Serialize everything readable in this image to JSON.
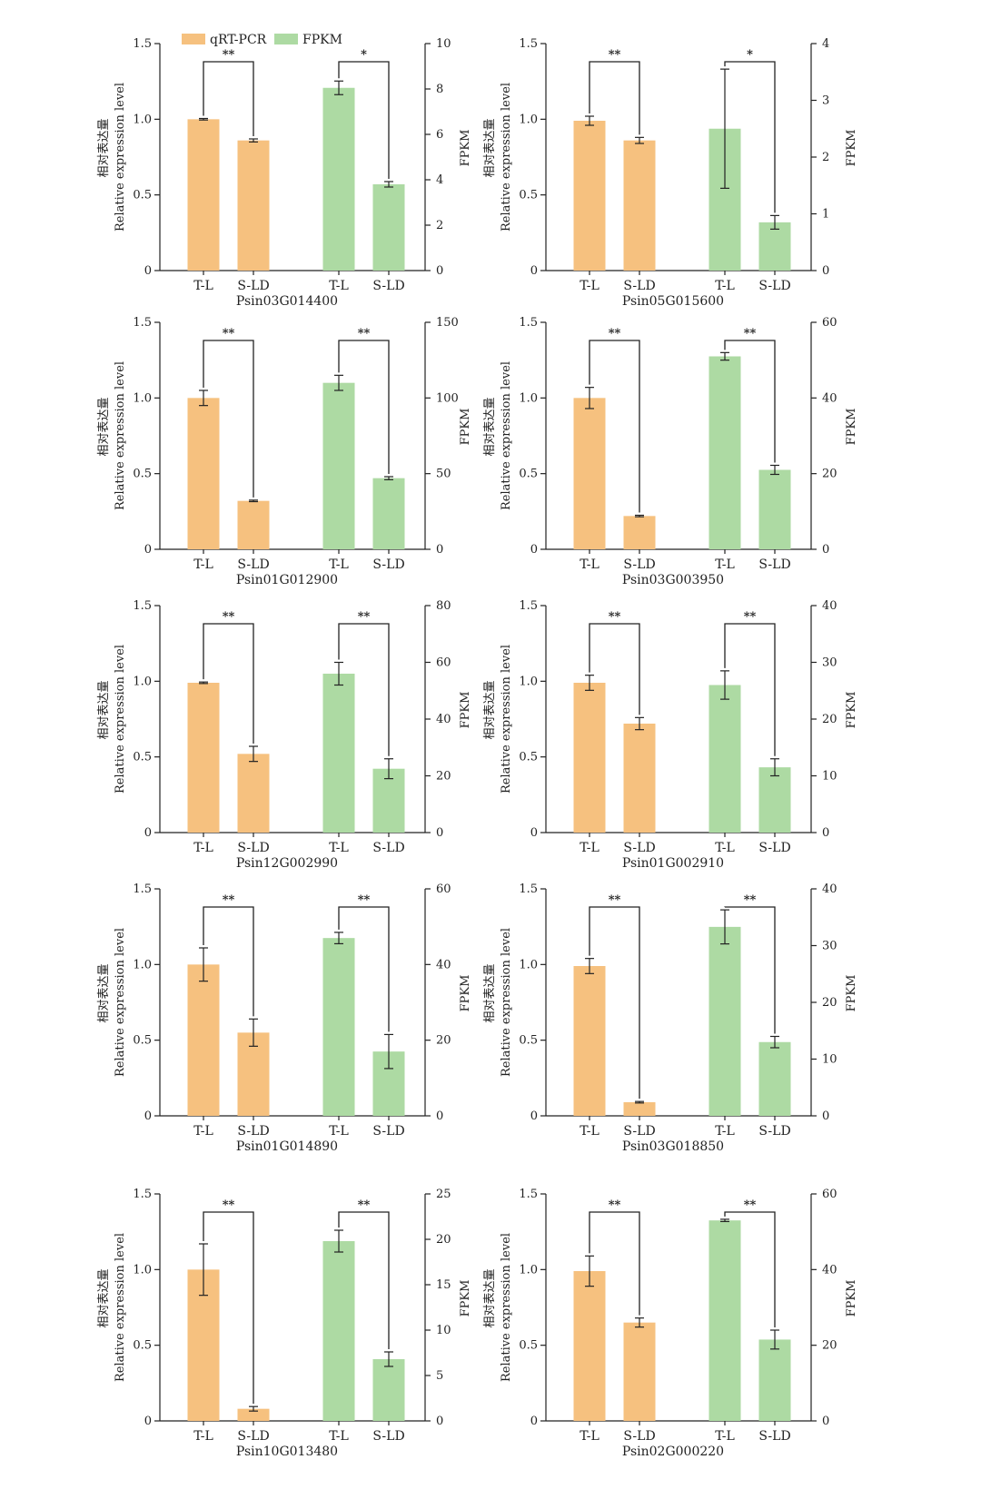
{
  "colors": {
    "qrt": "#F6C17F",
    "fpkm": "#ADDAA3",
    "axis": "#222222"
  },
  "legend": [
    {
      "key": "qrt",
      "label": "qRT-PCR"
    },
    {
      "key": "fpkm",
      "label": "FPKM"
    }
  ],
  "left_axis_label": "Relative expression level",
  "left_axis_label_cn": "相对表达量",
  "right_axis_label": "FPKM",
  "chart_data": [
    {
      "type": "bar",
      "gene": "Psin03G014400",
      "categories": [
        "T-L",
        "S-LD",
        "T-L",
        "S-LD"
      ],
      "qrt": {
        "values": [
          1.0,
          0.86
        ],
        "err": [
          0.005,
          0.01
        ],
        "ylim": [
          0,
          1.5
        ],
        "ticks": [
          "0",
          "0.5",
          "1.0",
          "1.5"
        ]
      },
      "fpkm": {
        "values": [
          8.05,
          3.8
        ],
        "err": [
          0.3,
          0.12
        ],
        "ylim": [
          0,
          10
        ],
        "ticks": [
          "0",
          "2",
          "4",
          "6",
          "8",
          "10"
        ]
      },
      "sig": [
        "**",
        "*"
      ]
    },
    {
      "type": "bar",
      "gene": "Psin05G015600",
      "categories": [
        "T-L",
        "S-LD",
        "T-L",
        "S-LD"
      ],
      "qrt": {
        "values": [
          0.99,
          0.86
        ],
        "err": [
          0.03,
          0.02
        ],
        "ylim": [
          0,
          1.5
        ],
        "ticks": [
          "0",
          "0.5",
          "1.0",
          "1.5"
        ]
      },
      "fpkm": {
        "values": [
          2.5,
          0.85
        ],
        "err": [
          1.05,
          0.12
        ],
        "ylim": [
          0,
          4
        ],
        "ticks": [
          "0",
          "1",
          "2",
          "3",
          "4"
        ]
      },
      "sig": [
        "**",
        "*"
      ]
    },
    {
      "type": "bar",
      "gene": "Psin01G012900",
      "categories": [
        "T-L",
        "S-LD",
        "T-L",
        "S-LD"
      ],
      "qrt": {
        "values": [
          1.0,
          0.32
        ],
        "err": [
          0.05,
          0.005
        ],
        "ylim": [
          0,
          1.5
        ],
        "ticks": [
          "0",
          "0.5",
          "1.0",
          "1.5"
        ]
      },
      "fpkm": {
        "values": [
          110,
          47
        ],
        "err": [
          5,
          1
        ],
        "ylim": [
          0,
          150
        ],
        "ticks": [
          "0",
          "50",
          "100",
          "150"
        ]
      },
      "sig": [
        "**",
        "**"
      ]
    },
    {
      "type": "bar",
      "gene": "Psin03G003950",
      "categories": [
        "T-L",
        "S-LD",
        "T-L",
        "S-LD"
      ],
      "qrt": {
        "values": [
          1.0,
          0.22
        ],
        "err": [
          0.07,
          0.005
        ],
        "ylim": [
          0,
          1.5
        ],
        "ticks": [
          "0",
          "0.5",
          "1.0",
          "1.5"
        ]
      },
      "fpkm": {
        "values": [
          51,
          21
        ],
        "err": [
          1,
          1.2
        ],
        "ylim": [
          0,
          60
        ],
        "ticks": [
          "0",
          "20",
          "40",
          "60"
        ]
      },
      "sig": [
        "**",
        "**"
      ]
    },
    {
      "type": "bar",
      "gene": "Psin12G002990",
      "categories": [
        "T-L",
        "S-LD",
        "T-L",
        "S-LD"
      ],
      "qrt": {
        "values": [
          0.99,
          0.52
        ],
        "err": [
          0.005,
          0.05
        ],
        "ylim": [
          0,
          1.5
        ],
        "ticks": [
          "0",
          "0.5",
          "1.0",
          "1.5"
        ]
      },
      "fpkm": {
        "values": [
          56,
          22.5
        ],
        "err": [
          4,
          3.5
        ],
        "ylim": [
          0,
          80
        ],
        "ticks": [
          "0",
          "20",
          "40",
          "60",
          "80"
        ]
      },
      "sig": [
        "**",
        "**"
      ]
    },
    {
      "type": "bar",
      "gene": "Psin01G002910",
      "categories": [
        "T-L",
        "S-LD",
        "T-L",
        "S-LD"
      ],
      "qrt": {
        "values": [
          0.99,
          0.72
        ],
        "err": [
          0.05,
          0.04
        ],
        "ylim": [
          0,
          1.5
        ],
        "ticks": [
          "0",
          "0.5",
          "1.0",
          "1.5"
        ]
      },
      "fpkm": {
        "values": [
          26,
          11.5
        ],
        "err": [
          2.5,
          1.5
        ],
        "ylim": [
          0,
          40
        ],
        "ticks": [
          "0",
          "10",
          "20",
          "30",
          "40"
        ]
      },
      "sig": [
        "**",
        "**"
      ]
    },
    {
      "type": "bar",
      "gene": "Psin01G014890",
      "categories": [
        "T-L",
        "S-LD",
        "T-L",
        "S-LD"
      ],
      "qrt": {
        "values": [
          1.0,
          0.55
        ],
        "err": [
          0.11,
          0.09
        ],
        "ylim": [
          0,
          1.5
        ],
        "ticks": [
          "0",
          "0.5",
          "1.0",
          "1.5"
        ]
      },
      "fpkm": {
        "values": [
          47,
          17
        ],
        "err": [
          1.5,
          4.5
        ],
        "ylim": [
          0,
          60
        ],
        "ticks": [
          "0",
          "20",
          "40",
          "60"
        ]
      },
      "sig": [
        "**",
        "**"
      ]
    },
    {
      "type": "bar",
      "gene": "Psin03G018850",
      "categories": [
        "T-L",
        "S-LD",
        "T-L",
        "S-LD"
      ],
      "qrt": {
        "values": [
          0.99,
          0.09
        ],
        "err": [
          0.05,
          0.005
        ],
        "ylim": [
          0,
          1.5
        ],
        "ticks": [
          "0",
          "0.5",
          "1.0",
          "1.5"
        ]
      },
      "fpkm": {
        "values": [
          33.3,
          13
        ],
        "err": [
          3,
          1
        ],
        "ylim": [
          0,
          40
        ],
        "ticks": [
          "0",
          "10",
          "20",
          "30",
          "40"
        ]
      },
      "sig": [
        "**",
        "**"
      ]
    },
    {
      "type": "bar",
      "gene": "Psin10G013480",
      "categories": [
        "T-L",
        "S-LD",
        "T-L",
        "S-LD"
      ],
      "qrt": {
        "values": [
          1.0,
          0.08
        ],
        "err": [
          0.17,
          0.015
        ],
        "ylim": [
          0,
          1.5
        ],
        "ticks": [
          "0",
          "0.5",
          "1.0",
          "1.5"
        ]
      },
      "fpkm": {
        "values": [
          19.8,
          6.8
        ],
        "err": [
          1.2,
          0.8
        ],
        "ylim": [
          0,
          25
        ],
        "ticks": [
          "0",
          "5",
          "10",
          "15",
          "20",
          "25"
        ]
      },
      "sig": [
        "**",
        "**"
      ]
    },
    {
      "type": "bar",
      "gene": "Psin02G000220",
      "categories": [
        "T-L",
        "S-LD",
        "T-L",
        "S-LD"
      ],
      "qrt": {
        "values": [
          0.99,
          0.65
        ],
        "err": [
          0.1,
          0.03
        ],
        "ylim": [
          0,
          1.5
        ],
        "ticks": [
          "0",
          "0.5",
          "1.0",
          "1.5"
        ]
      },
      "fpkm": {
        "values": [
          53,
          21.5
        ],
        "err": [
          0.3,
          2.5
        ],
        "ylim": [
          0,
          60
        ],
        "ticks": [
          "0",
          "20",
          "40",
          "60"
        ]
      },
      "sig": [
        "**",
        "**"
      ]
    }
  ]
}
